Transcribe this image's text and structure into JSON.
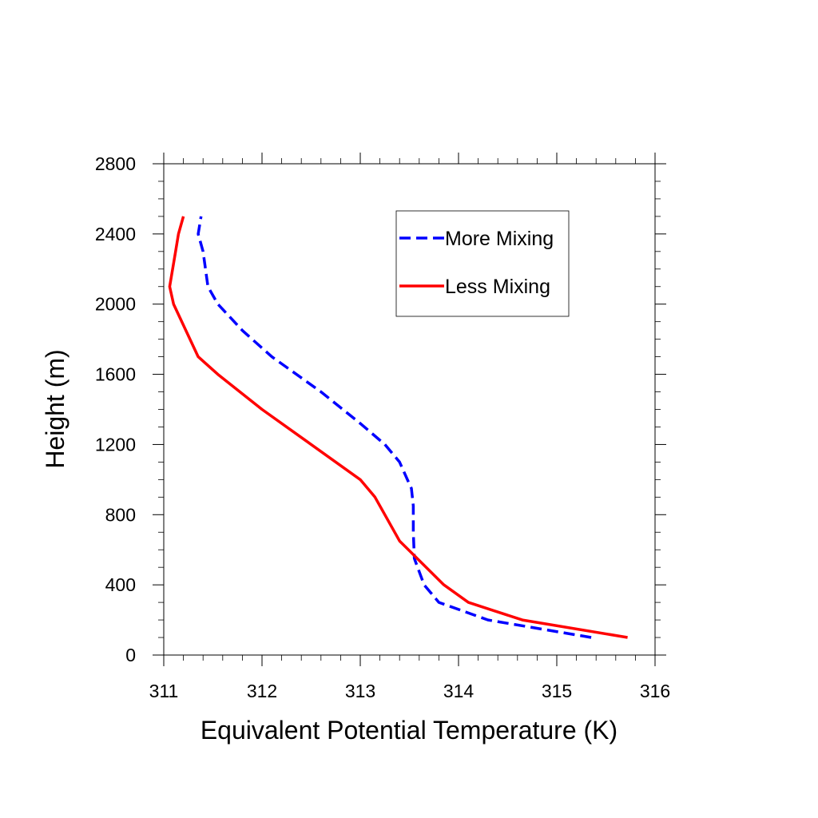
{
  "chart_data": {
    "type": "line",
    "xlabel": "Equivalent Potential Temperature (K)",
    "ylabel": "Height (m)",
    "xlim": [
      311,
      316
    ],
    "ylim": [
      0,
      2800
    ],
    "xticks": [
      311,
      312,
      313,
      314,
      315,
      316
    ],
    "yticks": [
      0,
      400,
      800,
      1200,
      1600,
      2000,
      2400,
      2800
    ],
    "legend_position": "top-right",
    "series": [
      {
        "name": "More Mixing",
        "color": "#0000ff",
        "style": "dashed",
        "points": [
          [
            315.35,
            100
          ],
          [
            314.3,
            200
          ],
          [
            313.8,
            300
          ],
          [
            313.65,
            400
          ],
          [
            313.55,
            550
          ],
          [
            313.54,
            700
          ],
          [
            313.54,
            850
          ],
          [
            313.52,
            950
          ],
          [
            313.48,
            1000
          ],
          [
            313.4,
            1100
          ],
          [
            313.25,
            1200
          ],
          [
            313.0,
            1320
          ],
          [
            312.6,
            1500
          ],
          [
            312.1,
            1700
          ],
          [
            311.8,
            1850
          ],
          [
            311.55,
            2000
          ],
          [
            311.45,
            2100
          ],
          [
            311.4,
            2300
          ],
          [
            311.35,
            2400
          ],
          [
            311.38,
            2500
          ]
        ]
      },
      {
        "name": "Less Mixing",
        "color": "#ff0000",
        "style": "solid",
        "points": [
          [
            315.72,
            100
          ],
          [
            314.65,
            200
          ],
          [
            314.1,
            300
          ],
          [
            313.85,
            400
          ],
          [
            313.4,
            650
          ],
          [
            313.15,
            900
          ],
          [
            313.0,
            1000
          ],
          [
            312.5,
            1200
          ],
          [
            312.0,
            1400
          ],
          [
            311.55,
            1600
          ],
          [
            311.35,
            1700
          ],
          [
            311.1,
            2000
          ],
          [
            311.06,
            2100
          ],
          [
            311.12,
            2300
          ],
          [
            311.15,
            2400
          ],
          [
            311.2,
            2500
          ]
        ]
      }
    ]
  }
}
